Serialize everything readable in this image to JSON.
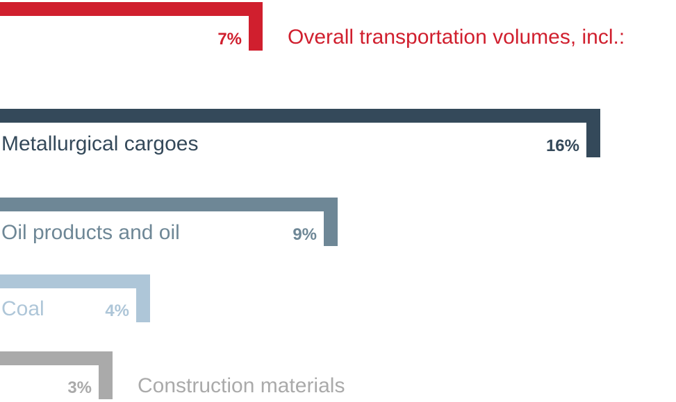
{
  "chart_data": {
    "type": "bar",
    "series_rows": [
      {
        "label": "Overall transportation volumes, incl.:",
        "value": 7,
        "value_label": "7%",
        "color": "#d01f2e"
      },
      {
        "label": "Metallurgical cargoes",
        "value": 16,
        "value_label": "16%",
        "color": "#34495a"
      },
      {
        "label": "Oil products and oil",
        "value": 9,
        "value_label": "9%",
        "color": "#6e8796"
      },
      {
        "label": "Coal",
        "value": 4,
        "value_label": "4%",
        "color": "#aec6d8"
      },
      {
        "label": "Construction materials",
        "value": 3,
        "value_label": "3%",
        "color": "#aaaaaa"
      }
    ],
    "unit": "%"
  }
}
